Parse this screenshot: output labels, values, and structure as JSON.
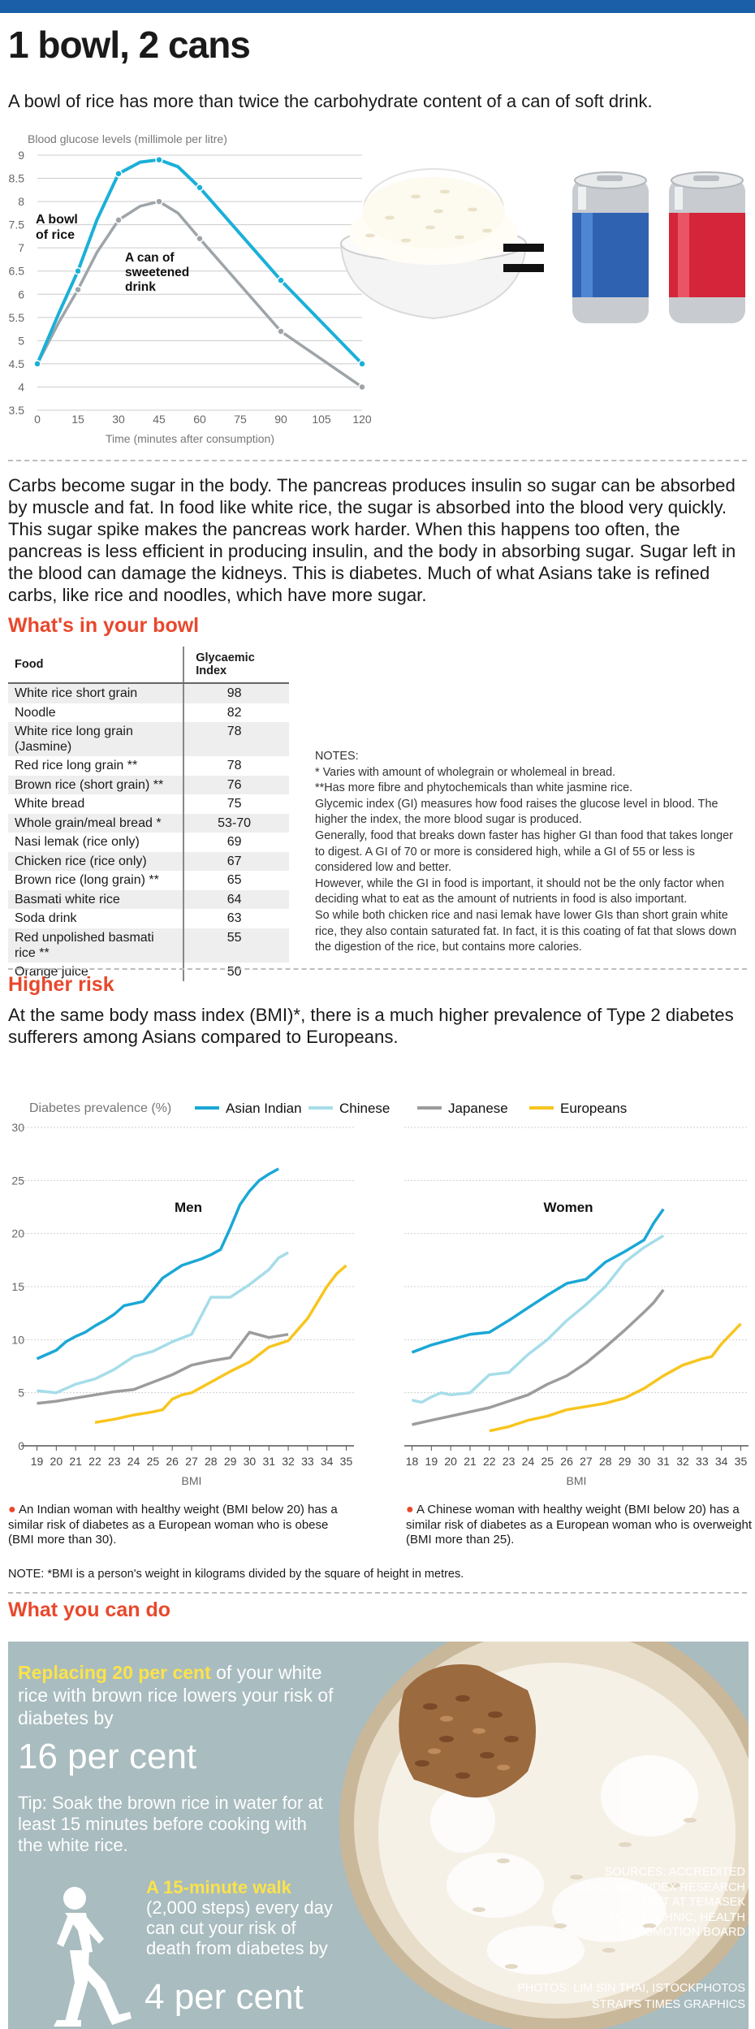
{
  "header": {
    "title": "1 bowl, 2 cans",
    "intro": "A bowl of rice has more than twice the carbohydrate content of a can of  soft drink."
  },
  "glucose_chart": {
    "ylabel": "Blood glucose levels (millimole per litre)",
    "xlabel": "Time (minutes after consumption)",
    "label_rice": [
      "A bowl",
      "of rice"
    ],
    "label_drink": [
      "A can of",
      "sweetened",
      "drink"
    ],
    "equals": "="
  },
  "body_text": "Carbs become sugar in the body. The pancreas produces insulin so sugar can be absorbed by muscle and fat. In food like white rice, the sugar is absorbed into the blood very quickly. This sugar spike makes the pancreas work harder. When this happens too often, the pancreas is less efficient in producing insulin, and the body in absorbing sugar. Sugar left in the blood can damage the kidneys. This is diabetes. Much of what Asians take is refined carbs, like rice and noodles, which have more sugar.",
  "bowl_section": {
    "title": "What's in your bowl",
    "col_food": "Food",
    "col_index": "Glycaemic  Index",
    "rows": [
      {
        "food": "White rice short grain",
        "gi": "98"
      },
      {
        "food": "Noodle",
        "gi": "82"
      },
      {
        "food": "White rice long grain (Jasmine)",
        "gi": "78"
      },
      {
        "food": "Red rice long grain **",
        "gi": "78"
      },
      {
        "food": "Brown rice (short grain) **",
        "gi": "76"
      },
      {
        "food": "White bread",
        "gi": "75"
      },
      {
        "food": "Whole grain/meal bread *",
        "gi": "53-70"
      },
      {
        "food": "Nasi lemak (rice only)",
        "gi": "69"
      },
      {
        "food": "Chicken rice (rice only)",
        "gi": "67"
      },
      {
        "food": "Brown rice (long grain) **",
        "gi": "65"
      },
      {
        "food": "Basmati white rice",
        "gi": "64"
      },
      {
        "food": "Soda drink",
        "gi": "63"
      },
      {
        "food": "Red unpolished basmati rice **",
        "gi": "55"
      },
      {
        "food": "Orange juice",
        "gi": "50"
      }
    ],
    "notes": [
      "NOTES:",
      "* Varies with amount of wholegrain or wholemeal in bread.",
      "**Has more fibre and phytochemicals than white jasmine rice.",
      "Glycemic index (GI) measures how food raises the glucose level in blood. The higher the index, the more blood sugar is produced.",
      "Generally, food that breaks down faster has higher GI than food that takes longer to digest. A GI of 70 or more is considered high, while a GI of 55 or less is considered low and better.",
      "However, while the GI in food is important, it should not be the only factor when deciding what to eat as the amount of nutrients in food is also important.",
      "So while both chicken rice and nasi lemak have lower GIs than short grain white rice, they also contain saturated fat. In fact, it is this coating of fat that slows down the digestion of the rice, but contains more calories."
    ]
  },
  "risk_section": {
    "title": "Higher risk",
    "text": "At the same body mass index (BMI)*, there is a much higher prevalence of Type 2 diabetes sufferers among Asians compared to Europeans.",
    "ylabel": "Diabetes prevalence (%)",
    "legend": [
      "Asian Indian",
      "Chinese",
      "Japanese",
      "Europeans"
    ],
    "men_caption": "An Indian woman with healthy weight (BMI below 20) has a similar risk of diabetes as a European woman who is obese (BMI more than 30).",
    "women_caption": "A Chinese woman with healthy weight (BMI below 20) has a similar risk of diabetes as a European woman who is overweight (BMI more than 25).",
    "note": "NOTE: *BMI is a person's weight in kilograms divided by the square of height in metres."
  },
  "do_section": {
    "title": "What you can do",
    "replace_bold": "Replacing 20 per cent",
    "replace_rest": " of your white rice with brown rice lowers your risk of diabetes by",
    "replace_big": "16 per cent",
    "tip": "Tip: Soak the brown rice in water for at least 15 minutes before cooking with the white rice.",
    "walk_bold": "A 15-minute walk",
    "walk_rest": "(2,000 steps) every day can cut your risk of death from diabetes by",
    "walk_big": "4 per cent",
    "sources": "SOURCES: ACCREDITED GLYCEMIC INDEX RESEARCH UNIT AT TEMASEK POLYTECHNIC, HEALTH PROMOTION BOARD",
    "photos": [
      "PHOTOS: LIM SIN THAI, ISTOCKPHOTOS",
      "STRAITS TIMES GRAPHICS"
    ]
  },
  "colors": {
    "rice_line": "#1ab0d8",
    "drink_line": "#9ea4a8",
    "asian_indian": "#1aa7d6",
    "chinese": "#a6dde9",
    "japanese": "#9c9c9c",
    "europeans": "#f7c51e",
    "accent": "#e8482c"
  },
  "chart_data": [
    {
      "type": "line",
      "ylabel": "Blood glucose levels (millimole per litre)",
      "xlabel": "Time (minutes after consumption)",
      "x": [
        0,
        15,
        30,
        45,
        60,
        75,
        90,
        105,
        120
      ],
      "xticks": [
        0,
        15,
        30,
        45,
        60,
        75,
        90,
        105,
        120
      ],
      "yticks": [
        3.5,
        4,
        4.5,
        5,
        5.5,
        6,
        6.5,
        7,
        7.5,
        8,
        8.5,
        9
      ],
      "ylim": [
        3.5,
        9
      ],
      "series": [
        {
          "name": "A bowl of rice",
          "values": [
            4.5,
            6.5,
            8.6,
            8.9,
            8.3,
            null,
            6.3,
            null,
            4.5
          ]
        },
        {
          "name": "A can of sweetened drink",
          "values": [
            4.5,
            6.1,
            7.6,
            8.0,
            7.2,
            null,
            5.2,
            null,
            4.0
          ]
        }
      ],
      "curve_rice": [
        [
          0,
          4.5
        ],
        [
          8,
          5.6
        ],
        [
          15,
          6.5
        ],
        [
          22,
          7.6
        ],
        [
          30,
          8.6
        ],
        [
          38,
          8.85
        ],
        [
          45,
          8.9
        ],
        [
          52,
          8.75
        ],
        [
          60,
          8.3
        ],
        [
          75,
          7.3
        ],
        [
          90,
          6.3
        ],
        [
          105,
          5.4
        ],
        [
          120,
          4.5
        ]
      ],
      "curve_drink": [
        [
          0,
          4.5
        ],
        [
          8,
          5.4
        ],
        [
          15,
          6.1
        ],
        [
          22,
          6.9
        ],
        [
          30,
          7.6
        ],
        [
          38,
          7.9
        ],
        [
          45,
          8.0
        ],
        [
          52,
          7.75
        ],
        [
          60,
          7.2
        ],
        [
          75,
          6.2
        ],
        [
          90,
          5.2
        ],
        [
          105,
          4.6
        ],
        [
          120,
          4.0
        ]
      ]
    },
    {
      "type": "line",
      "title": "Men",
      "ylabel": "Diabetes prevalence (%)",
      "xlabel": "BMI",
      "ylim": [
        0,
        30
      ],
      "yticks": [
        0,
        5,
        10,
        15,
        20,
        25,
        30
      ],
      "xlim": [
        18.6,
        35.4
      ],
      "xticks": [
        19,
        20,
        21,
        22,
        23,
        24,
        25,
        26,
        27,
        28,
        29,
        30,
        31,
        32,
        33,
        34,
        35
      ],
      "series": [
        {
          "name": "Asian Indian",
          "points": [
            [
              19,
              8.2
            ],
            [
              19.5,
              8.6
            ],
            [
              20,
              9
            ],
            [
              20.5,
              9.8
            ],
            [
              21,
              10.3
            ],
            [
              21.5,
              10.7
            ],
            [
              22,
              11.3
            ],
            [
              22.5,
              11.8
            ],
            [
              23,
              12.4
            ],
            [
              23.5,
              13.2
            ],
            [
              24,
              13.4
            ],
            [
              24.5,
              13.6
            ],
            [
              25,
              14.7
            ],
            [
              25.5,
              15.8
            ],
            [
              26,
              16.4
            ],
            [
              26.5,
              17
            ],
            [
              27,
              17.3
            ],
            [
              27.5,
              17.6
            ],
            [
              28,
              18
            ],
            [
              28.5,
              18.5
            ],
            [
              29,
              20.5
            ],
            [
              29.5,
              22.7
            ],
            [
              30,
              24
            ],
            [
              30.5,
              25
            ],
            [
              31,
              25.6
            ],
            [
              31.5,
              26.1
            ]
          ]
        },
        {
          "name": "Chinese",
          "points": [
            [
              19,
              5.2
            ],
            [
              20,
              5
            ],
            [
              21,
              5.8
            ],
            [
              22,
              6.3
            ],
            [
              23,
              7.2
            ],
            [
              24,
              8.4
            ],
            [
              25,
              8.9
            ],
            [
              26,
              9.8
            ],
            [
              27,
              10.5
            ],
            [
              28,
              14
            ],
            [
              29,
              14
            ],
            [
              30,
              15.2
            ],
            [
              31,
              16.6
            ],
            [
              31.5,
              17.7
            ],
            [
              32,
              18.2
            ]
          ]
        },
        {
          "name": "Japanese",
          "points": [
            [
              19,
              4
            ],
            [
              20,
              4.2
            ],
            [
              21,
              4.5
            ],
            [
              22,
              4.8
            ],
            [
              23,
              5.1
            ],
            [
              24,
              5.3
            ],
            [
              25,
              6
            ],
            [
              26,
              6.7
            ],
            [
              27,
              7.6
            ],
            [
              28,
              8
            ],
            [
              29,
              8.3
            ],
            [
              29.5,
              9.5
            ],
            [
              30,
              10.7
            ],
            [
              31,
              10.2
            ],
            [
              32,
              10.5
            ]
          ]
        },
        {
          "name": "Europeans",
          "points": [
            [
              22,
              2.2
            ],
            [
              23,
              2.5
            ],
            [
              24,
              2.9
            ],
            [
              25,
              3.2
            ],
            [
              25.5,
              3.4
            ],
            [
              26,
              4.4
            ],
            [
              26.5,
              4.8
            ],
            [
              27,
              5
            ],
            [
              28,
              6
            ],
            [
              29,
              7
            ],
            [
              30,
              7.9
            ],
            [
              31,
              9.3
            ],
            [
              32,
              9.9
            ],
            [
              33,
              12
            ],
            [
              33.5,
              13.5
            ],
            [
              34,
              15
            ],
            [
              34.5,
              16.2
            ],
            [
              35,
              17
            ]
          ]
        }
      ]
    },
    {
      "type": "line",
      "title": "Women",
      "ylabel": "Diabetes prevalence (%)",
      "xlabel": "BMI",
      "ylim": [
        0,
        30
      ],
      "yticks": [
        0,
        5,
        10,
        15,
        20,
        25,
        30
      ],
      "xlim": [
        17.6,
        35.4
      ],
      "xticks": [
        18,
        19,
        20,
        21,
        22,
        23,
        24,
        25,
        26,
        27,
        28,
        29,
        30,
        31,
        32,
        33,
        34,
        35
      ],
      "series": [
        {
          "name": "Asian Indian",
          "points": [
            [
              18,
              8.8
            ],
            [
              19,
              9.5
            ],
            [
              20,
              10
            ],
            [
              21,
              10.5
            ],
            [
              22,
              10.7
            ],
            [
              23,
              11.8
            ],
            [
              24,
              13
            ],
            [
              25,
              14.2
            ],
            [
              26,
              15.3
            ],
            [
              27,
              15.7
            ],
            [
              28,
              17.3
            ],
            [
              29,
              18.3
            ],
            [
              30,
              19.4
            ],
            [
              30.5,
              21
            ],
            [
              31,
              22.3
            ]
          ]
        },
        {
          "name": "Chinese",
          "points": [
            [
              18,
              4.3
            ],
            [
              18.5,
              4.1
            ],
            [
              19,
              4.6
            ],
            [
              19.5,
              5
            ],
            [
              20,
              4.8
            ],
            [
              21,
              5
            ],
            [
              22,
              6.7
            ],
            [
              23,
              6.9
            ],
            [
              24,
              8.6
            ],
            [
              25,
              10
            ],
            [
              26,
              11.8
            ],
            [
              27,
              13.3
            ],
            [
              28,
              15
            ],
            [
              29,
              17.3
            ],
            [
              30,
              18.7
            ],
            [
              31,
              19.8
            ]
          ]
        },
        {
          "name": "Japanese",
          "points": [
            [
              18,
              2
            ],
            [
              19,
              2.4
            ],
            [
              20,
              2.8
            ],
            [
              21,
              3.2
            ],
            [
              22,
              3.6
            ],
            [
              23,
              4.2
            ],
            [
              24,
              4.8
            ],
            [
              25,
              5.8
            ],
            [
              26,
              6.6
            ],
            [
              27,
              7.8
            ],
            [
              28,
              9.3
            ],
            [
              29,
              10.9
            ],
            [
              30,
              12.6
            ],
            [
              30.5,
              13.5
            ],
            [
              31,
              14.7
            ]
          ]
        },
        {
          "name": "Europeans",
          "points": [
            [
              22,
              1.4
            ],
            [
              23,
              1.8
            ],
            [
              24,
              2.4
            ],
            [
              25,
              2.8
            ],
            [
              26,
              3.4
            ],
            [
              27,
              3.7
            ],
            [
              28,
              4
            ],
            [
              29,
              4.5
            ],
            [
              30,
              5.4
            ],
            [
              31,
              6.6
            ],
            [
              32,
              7.6
            ],
            [
              33,
              8.2
            ],
            [
              33.5,
              8.4
            ],
            [
              34,
              9.6
            ],
            [
              35,
              11.5
            ]
          ]
        }
      ]
    }
  ]
}
